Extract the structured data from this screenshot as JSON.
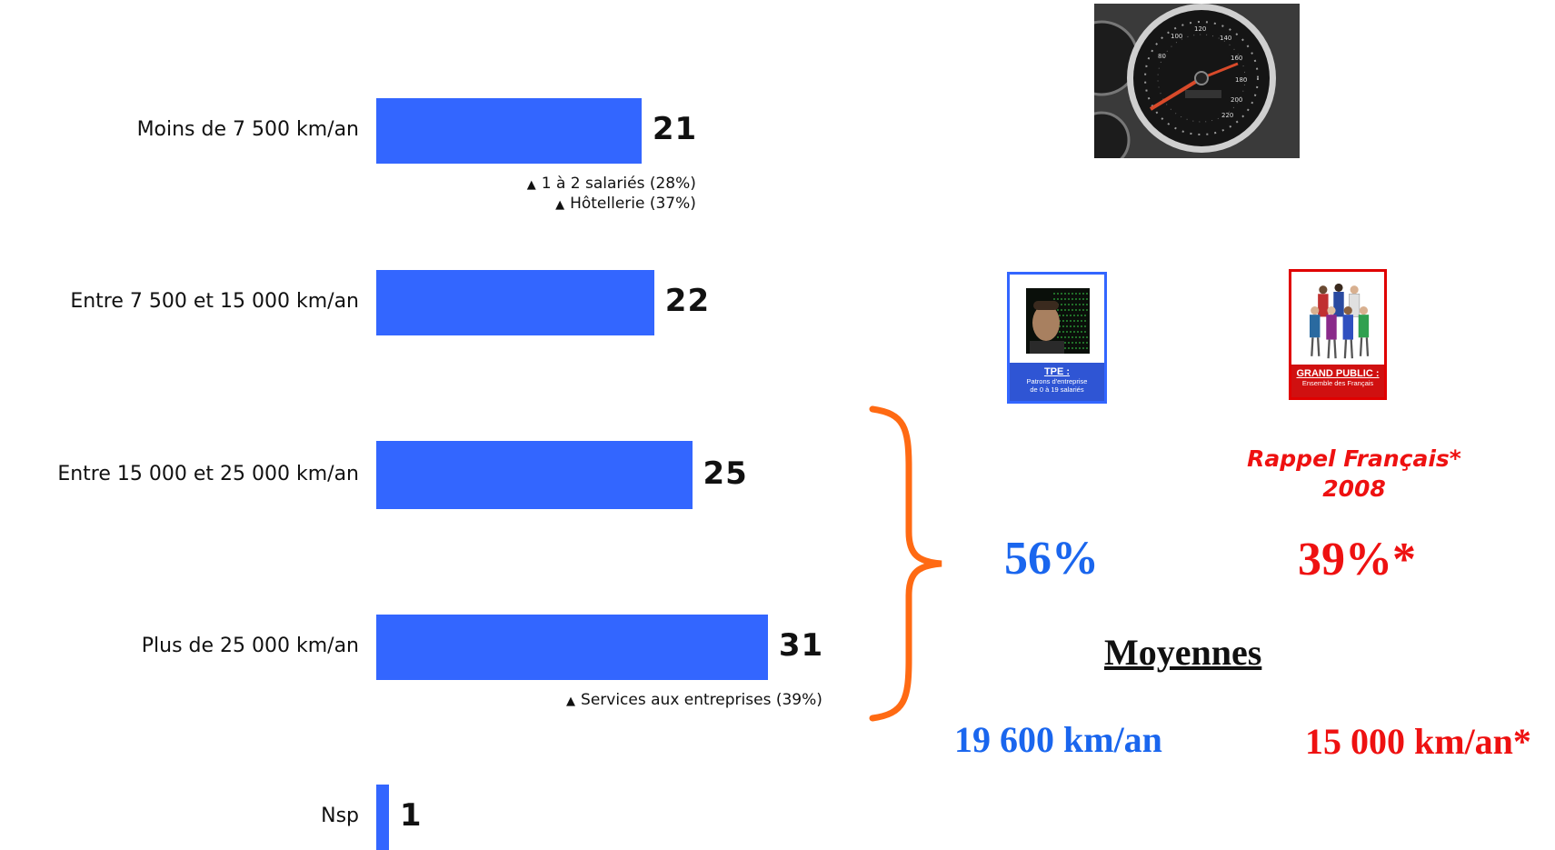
{
  "chart_data": {
    "type": "bar",
    "orientation": "horizontal",
    "categories": [
      "Moins de 7 500 km/an",
      "Entre 7 500 et 15 000 km/an",
      "Entre 15 000 et 25 000 km/an",
      "Plus de 25 000 km/an",
      "Nsp"
    ],
    "values": [
      21,
      22,
      25,
      31,
      1
    ],
    "bar_color": "#3366ff",
    "grid": false,
    "annotations": [
      {
        "category": "Moins de 7 500 km/an",
        "lines": [
          "1 à 2 salariés (28%)",
          "Hôtellerie (37%)"
        ]
      },
      {
        "category": "Plus de 25 000 km/an",
        "lines": [
          "Services aux entreprises (39%)"
        ]
      }
    ]
  },
  "cards": {
    "tpe": {
      "title": "TPE :",
      "subtitle_1": "Patrons d'entreprise",
      "subtitle_2": "de 0 à 19 salariés",
      "color": "#3366ff"
    },
    "grand_public": {
      "title": "GRAND PUBLIC :",
      "subtitle_1": "Ensemble des Français",
      "color": "#e00000"
    }
  },
  "summary": {
    "rappel_line1": "Rappel Français*",
    "rappel_line2": "2008",
    "tpe_share": "56%",
    "gp_share": "39%*",
    "moyennes_label": "Moyennes",
    "tpe_avg": "19 600 km/an",
    "gp_avg": "15 000 km/an*",
    "tpe_color": "#1a66ee",
    "gp_color": "#ee1111",
    "brace_color": "#ff6a13"
  }
}
